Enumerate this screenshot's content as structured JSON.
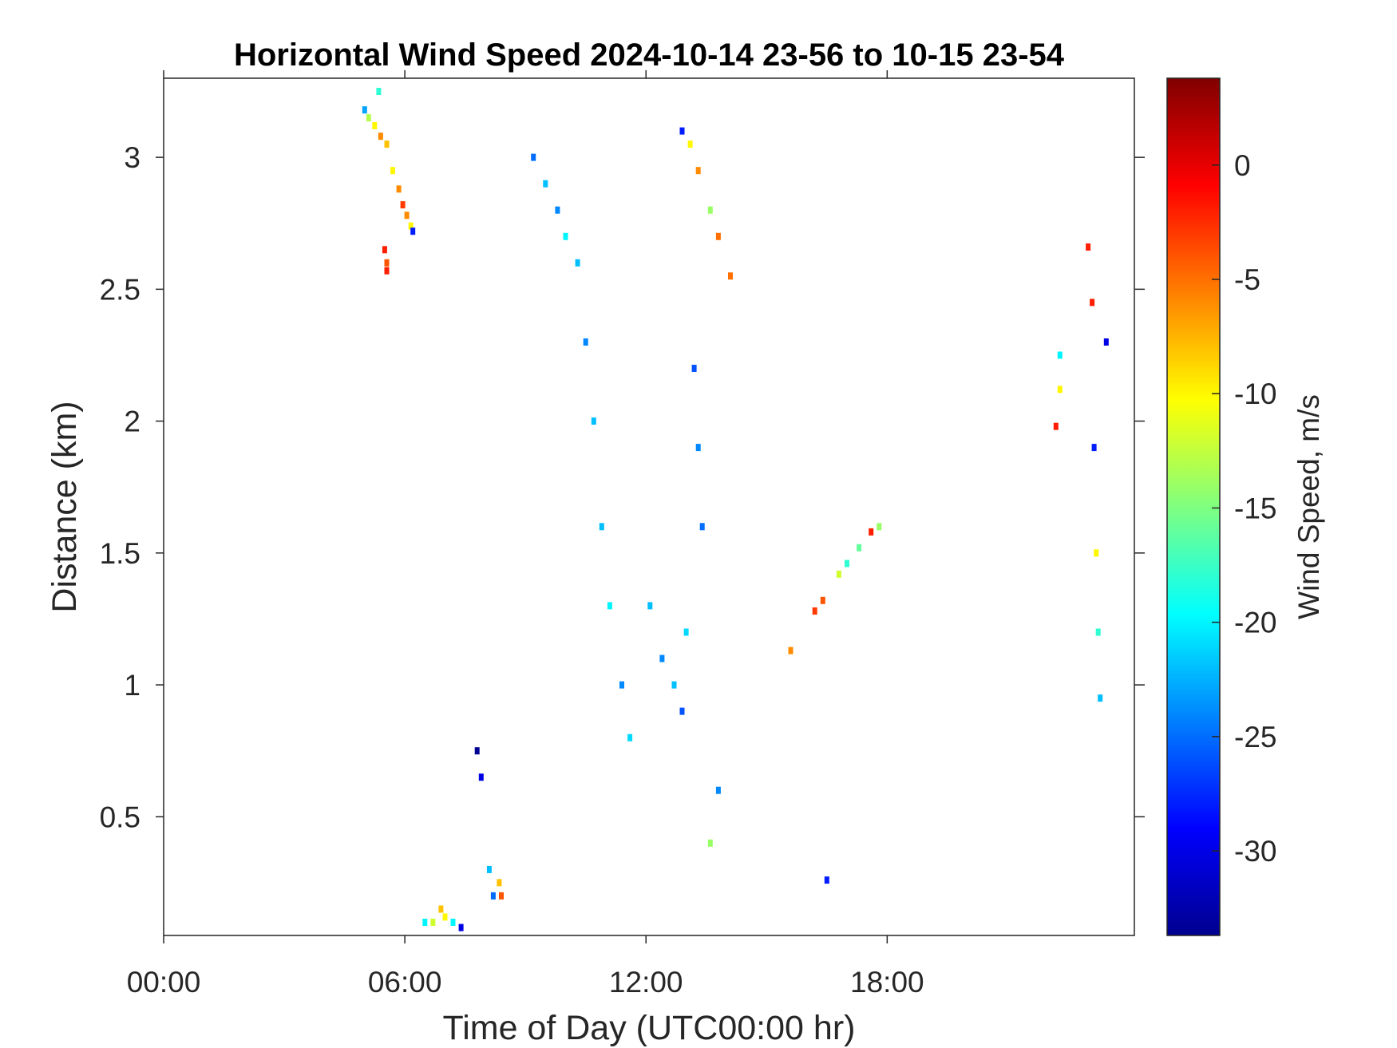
{
  "chart_data": {
    "type": "heatmap",
    "title": "Horizontal Wind Speed 2024-10-14 23-56 to 10-15 23-54",
    "xlabel": "Time of Day (UTC00:00 hr)",
    "ylabel": "Distance (km)",
    "colorbar_label": "Wind Speed, m/s",
    "xlim": [
      0,
      24.15
    ],
    "ylim": [
      0.05,
      3.3
    ],
    "x_ticks": [
      0,
      6,
      12,
      18
    ],
    "x_tick_labels": [
      "00:00",
      "06:00",
      "12:00",
      "18:00"
    ],
    "y_ticks": [
      0.5,
      1,
      1.5,
      2,
      2.5,
      3
    ],
    "y_tick_labels": [
      "0.5",
      "1",
      "1.5",
      "2",
      "2.5",
      "3"
    ],
    "colorbar_ticks": [
      0,
      -5,
      -10,
      -15,
      -20,
      -25,
      -30
    ],
    "colorbar_tick_labels": [
      "0",
      "-5",
      "-10",
      "-15",
      "-20",
      "-25",
      "-30"
    ],
    "colorbar_range": [
      -33.7,
      3.8
    ],
    "colormap": "jet",
    "grid": false,
    "series": [
      {
        "points": [
          [
            5.0,
            3.18,
            -23
          ],
          [
            5.1,
            3.15,
            -13
          ],
          [
            5.25,
            3.12,
            -10
          ],
          [
            5.35,
            3.25,
            -18
          ],
          [
            5.4,
            3.08,
            -6
          ],
          [
            5.55,
            3.05,
            -8
          ]
        ]
      },
      {
        "points": [
          [
            5.7,
            2.95,
            -10
          ],
          [
            5.85,
            2.88,
            -6
          ],
          [
            5.95,
            2.82,
            -3
          ],
          [
            6.05,
            2.78,
            -6
          ],
          [
            6.15,
            2.74,
            -10
          ],
          [
            6.2,
            2.72,
            -28
          ]
        ]
      },
      {
        "points": [
          [
            5.5,
            2.65,
            -2
          ],
          [
            5.55,
            2.6,
            -4
          ],
          [
            5.55,
            2.57,
            -2
          ]
        ]
      },
      {
        "points": [
          [
            6.5,
            0.1,
            -20
          ],
          [
            6.7,
            0.1,
            -12
          ],
          [
            6.9,
            0.15,
            -8
          ],
          [
            7.0,
            0.12,
            -10
          ],
          [
            7.2,
            0.1,
            -20
          ],
          [
            7.4,
            0.08,
            -30
          ]
        ]
      },
      {
        "points": [
          [
            7.8,
            0.75,
            -33
          ],
          [
            7.9,
            0.65,
            -30
          ],
          [
            8.1,
            0.3,
            -22
          ],
          [
            8.2,
            0.2,
            -25
          ],
          [
            8.35,
            0.25,
            -8
          ],
          [
            8.4,
            0.2,
            -4
          ]
        ]
      },
      {
        "points": [
          [
            9.2,
            3.0,
            -25
          ],
          [
            9.5,
            2.9,
            -22
          ],
          [
            9.8,
            2.8,
            -24
          ],
          [
            10.0,
            2.7,
            -20
          ],
          [
            10.3,
            2.6,
            -22
          ]
        ]
      },
      {
        "points": [
          [
            10.5,
            2.3,
            -24
          ],
          [
            10.7,
            2.0,
            -22
          ],
          [
            10.9,
            1.6,
            -22
          ],
          [
            11.1,
            1.3,
            -20
          ],
          [
            11.4,
            1.0,
            -24
          ],
          [
            11.6,
            0.8,
            -21
          ]
        ]
      },
      {
        "points": [
          [
            12.1,
            1.3,
            -22
          ],
          [
            12.4,
            1.1,
            -24
          ],
          [
            12.7,
            1.0,
            -22
          ],
          [
            12.9,
            0.9,
            -26
          ],
          [
            13.0,
            1.2,
            -21
          ]
        ]
      },
      {
        "points": [
          [
            12.9,
            3.1,
            -28
          ],
          [
            13.1,
            3.05,
            -10
          ],
          [
            13.3,
            2.95,
            -6
          ],
          [
            13.6,
            2.8,
            -14
          ],
          [
            13.8,
            2.7,
            -5
          ],
          [
            14.1,
            2.55,
            -5
          ]
        ]
      },
      {
        "points": [
          [
            13.2,
            2.2,
            -26
          ],
          [
            13.3,
            1.9,
            -24
          ],
          [
            13.4,
            1.6,
            -25
          ],
          [
            13.6,
            0.4,
            -14
          ],
          [
            13.8,
            0.6,
            -24
          ]
        ]
      },
      {
        "points": [
          [
            15.6,
            1.13,
            -6
          ],
          [
            16.2,
            1.28,
            -3
          ],
          [
            16.4,
            1.32,
            -4
          ],
          [
            16.8,
            1.42,
            -12
          ],
          [
            17.0,
            1.46,
            -18
          ],
          [
            17.3,
            1.52,
            -16
          ],
          [
            17.6,
            1.58,
            -2
          ],
          [
            17.8,
            1.6,
            -14
          ]
        ]
      },
      {
        "points": [
          [
            16.5,
            0.26,
            -28
          ]
        ]
      },
      {
        "points": [
          [
            22.2,
            1.98,
            -2
          ],
          [
            22.3,
            2.12,
            -10
          ],
          [
            22.3,
            2.25,
            -20
          ]
        ]
      },
      {
        "points": [
          [
            23.0,
            2.66,
            -2
          ],
          [
            23.1,
            2.45,
            -2
          ],
          [
            23.15,
            1.9,
            -28
          ],
          [
            23.2,
            1.5,
            -10
          ],
          [
            23.25,
            1.2,
            -18
          ],
          [
            23.3,
            0.95,
            -22
          ],
          [
            23.45,
            2.3,
            -30
          ]
        ]
      }
    ]
  }
}
